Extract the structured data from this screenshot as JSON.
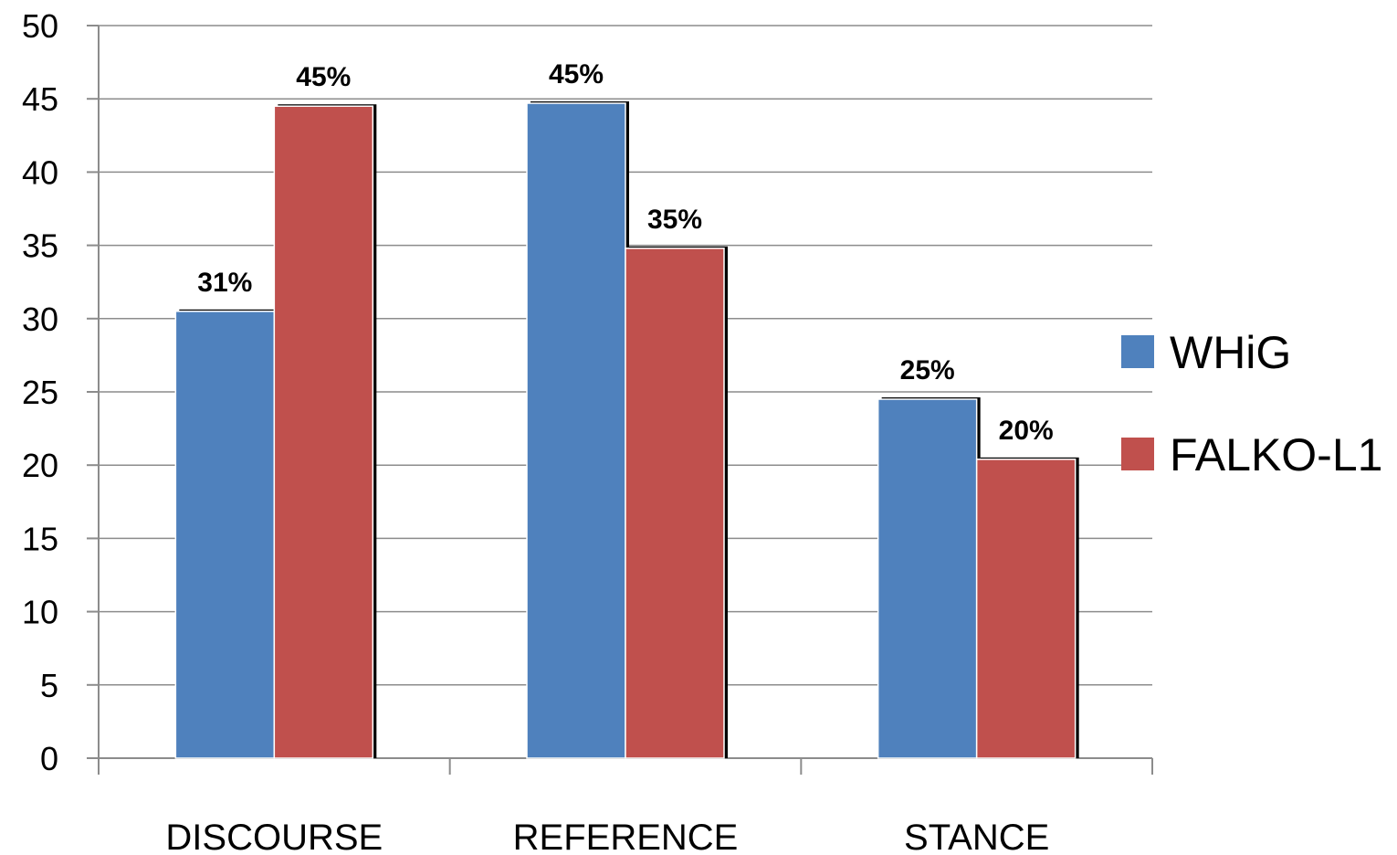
{
  "chart_data": {
    "type": "bar",
    "categories": [
      "DISCOURSE",
      "REFERENCE",
      "STANCE"
    ],
    "series": [
      {
        "name": "WHiG",
        "values": [
          30.5,
          44.7,
          24.5
        ],
        "labels": [
          "31%",
          "45%",
          "25%"
        ],
        "color": "#4f81bd"
      },
      {
        "name": "FALKO-L1",
        "values": [
          44.5,
          34.8,
          20.4
        ],
        "labels": [
          "45%",
          "35%",
          "20%"
        ],
        "color": "#c0504d"
      }
    ],
    "y_ticks": [
      "0",
      "5",
      "10",
      "15",
      "20",
      "25",
      "30",
      "35",
      "40",
      "45",
      "50"
    ],
    "ylim": [
      0,
      50
    ],
    "grid": true,
    "legend_position": "right",
    "title": "",
    "xlabel": "",
    "ylabel": ""
  }
}
